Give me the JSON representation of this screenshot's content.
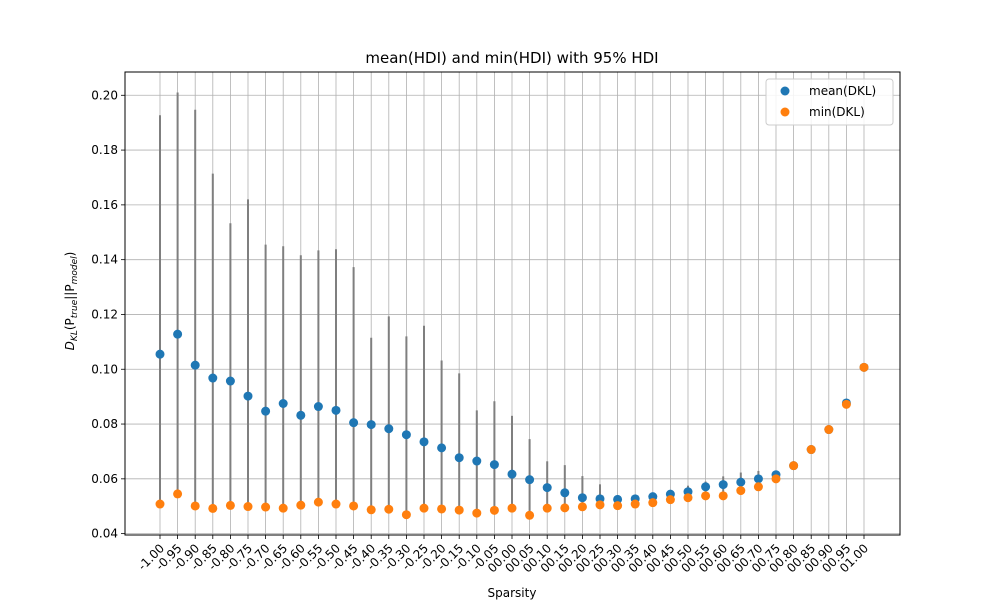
{
  "chart_data": {
    "type": "scatter",
    "title": "mean(HDI) and min(HDI) with 95% HDI",
    "xlabel": "Sparsity",
    "ylabel": "D_KL(P_true||P_model)",
    "ylabel_parts": {
      "main": "D",
      "sub1": "KL",
      "open": "(P",
      "sub2": "true",
      "mid": "||P",
      "sub3": "model",
      "close": ")"
    },
    "categories": [
      "-1.00",
      "-0.95",
      "-0.90",
      "-0.85",
      "-0.80",
      "-0.75",
      "-0.70",
      "-0.65",
      "-0.60",
      "-0.55",
      "-0.50",
      "-0.45",
      "-0.40",
      "-0.35",
      "-0.30",
      "-0.25",
      "-0.20",
      "-0.15",
      "-0.10",
      "-0.05",
      "00.00",
      "00.05",
      "00.10",
      "00.15",
      "00.20",
      "00.25",
      "00.30",
      "00.35",
      "00.40",
      "00.45",
      "00.50",
      "00.55",
      "00.60",
      "00.65",
      "00.70",
      "00.75",
      "00.80",
      "00.85",
      "00.90",
      "00.95",
      "01.00"
    ],
    "yticks": [
      "0.04",
      "0.06",
      "0.08",
      "0.10",
      "0.12",
      "0.14",
      "0.16",
      "0.18",
      "0.20"
    ],
    "ylim": [
      0.0395,
      0.2085
    ],
    "grid": "x-and-y",
    "legend_position": "top-right",
    "series": [
      {
        "name": "mean(DKL)",
        "color": "#1f77b4",
        "values": [
          0.1055,
          0.1128,
          0.1015,
          0.0968,
          0.0957,
          0.0902,
          0.0847,
          0.0875,
          0.0832,
          0.0864,
          0.085,
          0.0805,
          0.0798,
          0.0783,
          0.0761,
          0.0735,
          0.0713,
          0.0677,
          0.0665,
          0.0652,
          0.0617,
          0.0597,
          0.0568,
          0.0549,
          0.0531,
          0.0527,
          0.0525,
          0.0527,
          0.0535,
          0.0544,
          0.0553,
          0.0571,
          0.0579,
          0.0588,
          0.06,
          0.0615,
          0.0648,
          0.0707,
          0.078,
          0.0877,
          0.1007
        ]
      },
      {
        "name": "min(DKL)",
        "color": "#ff7f0e",
        "values": [
          0.0508,
          0.0545,
          0.0501,
          0.0492,
          0.0503,
          0.0499,
          0.0497,
          0.0493,
          0.0504,
          0.0515,
          0.0508,
          0.0501,
          0.0487,
          0.0489,
          0.0469,
          0.0493,
          0.049,
          0.0486,
          0.0475,
          0.0485,
          0.0493,
          0.0467,
          0.0493,
          0.0494,
          0.0498,
          0.0505,
          0.0502,
          0.0508,
          0.0513,
          0.0524,
          0.0531,
          0.0538,
          0.0538,
          0.0557,
          0.0571,
          0.06,
          0.0648,
          0.0707,
          0.078,
          0.0872,
          0.1007
        ]
      }
    ],
    "hdi_upper": [
      0.1927,
      0.201,
      0.1947,
      0.1714,
      0.1533,
      0.162,
      0.1455,
      0.1449,
      0.1416,
      0.1434,
      0.1438,
      0.1373,
      0.1115,
      0.1193,
      0.112,
      0.1159,
      0.1032,
      0.0985,
      0.085,
      0.0883,
      0.083,
      0.0745,
      0.0664,
      0.065,
      0.061,
      0.058,
      0.0538,
      0.054,
      0.0548,
      0.0555,
      0.0575,
      0.059,
      0.0609,
      0.0623,
      0.0629,
      0.0625,
      0.0648,
      0.0707,
      0.078,
      0.0885,
      0.1007
    ],
    "hdi_color": "#7f7f7f"
  }
}
